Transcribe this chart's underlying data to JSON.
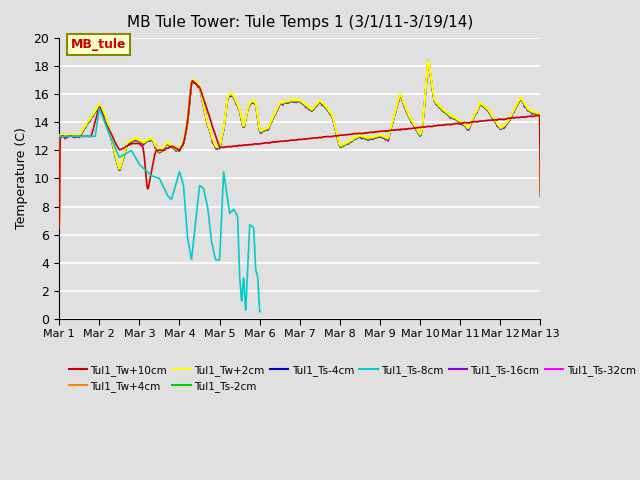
{
  "title": "MB Tule Tower: Tule Temps 1 (3/1/11-3/19/14)",
  "ylabel": "Temperature (C)",
  "xlim": [
    0,
    12
  ],
  "ylim": [
    0,
    20
  ],
  "yticks": [
    0,
    2,
    4,
    6,
    8,
    10,
    12,
    14,
    16,
    18,
    20
  ],
  "xtick_labels": [
    "Mar 1",
    "Mar 2",
    "Mar 3",
    "Mar 4",
    "Mar 5",
    "Mar 6",
    "Mar 7",
    "Mar 8",
    "Mar 9",
    "Mar 10",
    "Mar 11",
    "Mar 12",
    "Mar 13"
  ],
  "bg_color": "#e0e0e0",
  "plot_bg_color": "#e0e0e0",
  "grid_color": "white",
  "series_colors": {
    "Tul1_Tw+10cm": "#cc0000",
    "Tul1_Tw+4cm": "#ff8800",
    "Tul1_Tw+2cm": "#ffff00",
    "Tul1_Ts-2cm": "#00cc00",
    "Tul1_Ts-4cm": "#0000cc",
    "Tul1_Ts-8cm": "#00cccc",
    "Tul1_Ts-16cm": "#8800cc",
    "Tul1_Ts-32cm": "#ff00ff"
  },
  "annotation_box": {
    "text": "MB_tule",
    "facecolor": "#ffffcc",
    "edgecolor": "#888800",
    "textcolor": "#cc0000"
  }
}
